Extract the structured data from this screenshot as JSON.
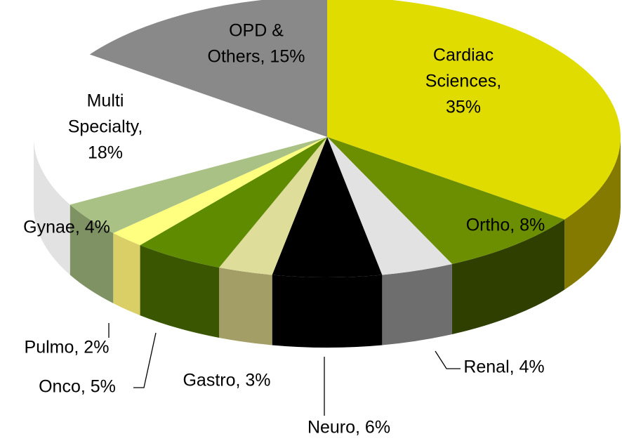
{
  "chart_data": {
    "type": "pie3d",
    "labels": [
      [
        "Cardiac",
        "Sciences,",
        "35%"
      ],
      [
        "Ortho, 8%"
      ],
      [
        "Renal, 4%"
      ],
      [
        "Neuro, 6%"
      ],
      [
        "Gastro, 3%"
      ],
      [
        "Onco, 5%"
      ],
      [
        "Pulmo, 2%"
      ],
      [
        "Gynae, 4%"
      ],
      [
        "Multi",
        "Specialty,",
        "18%"
      ],
      [
        "OPD &",
        "Others, 15%"
      ]
    ],
    "values": [
      35,
      8,
      4,
      6,
      3,
      5,
      2,
      4,
      18,
      15
    ],
    "colors": [
      "#e0dc00",
      "#6b8f00",
      "#e2e2e2",
      "#000000",
      "#dedd99",
      "#5f8b00",
      "#ffff80",
      "#a9c184",
      "#ffffff",
      "#898989"
    ],
    "side_colors": [
      "#857a00",
      "#2f3f00",
      "#6e6e6e",
      "#000000",
      "#a39d66",
      "#3b5600",
      "#d9cf66",
      "#7f9264",
      "#e2e2e2",
      "#666666"
    ]
  }
}
